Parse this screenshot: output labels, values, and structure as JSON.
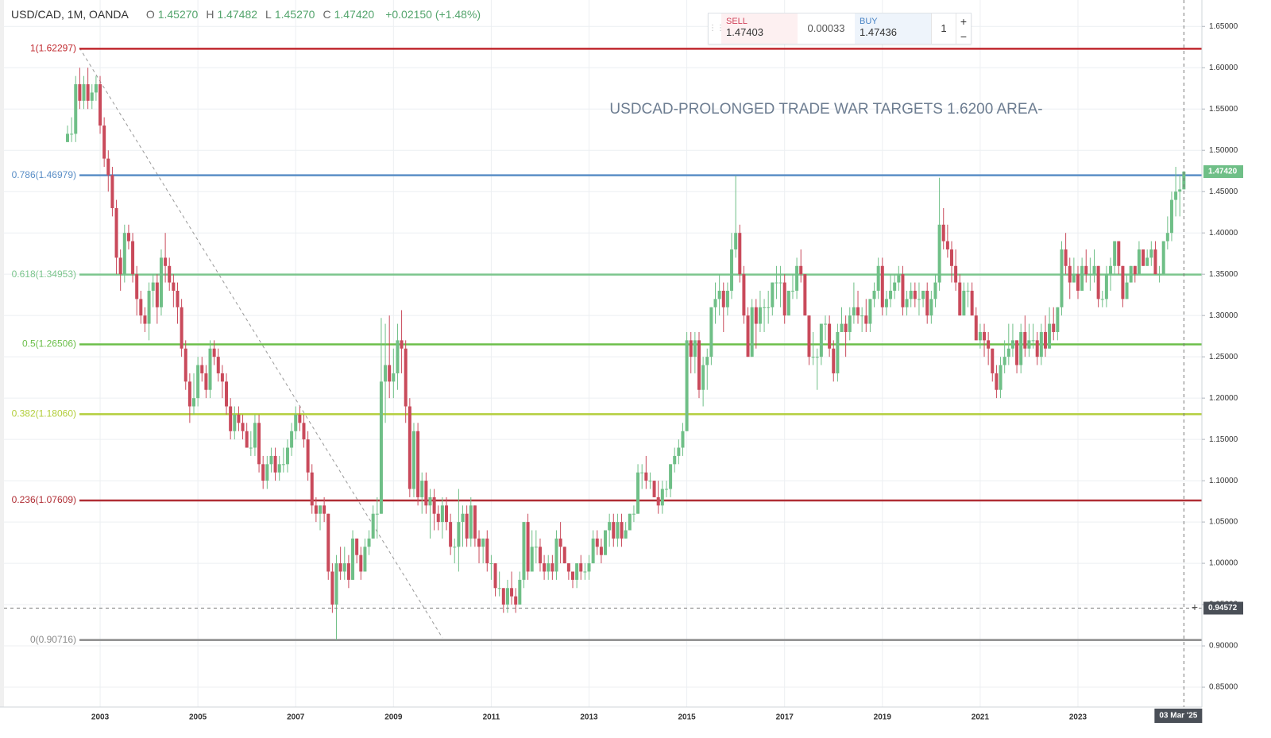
{
  "chart_data": {
    "type": "candlestick",
    "annotation": "USDCAD-PROLONGED TRADE WAR TARGETS 1.6200 AREA-",
    "header": {
      "symbol": "USD/CAD, 1M, OANDA",
      "fields": [
        {
          "key": "O",
          "value": "1.45270"
        },
        {
          "key": "H",
          "value": "1.47482"
        },
        {
          "key": "L",
          "value": "1.45270"
        },
        {
          "key": "C",
          "value": "1.47420"
        }
      ],
      "change": "+0.02150 (+1.48%)"
    },
    "up_color": "#6fbf87",
    "down_color": "#c94a5b",
    "ylim": [
      0.826,
      1.682
    ],
    "yticks": [
      {
        "value": 0.85,
        "label": "0.85000"
      },
      {
        "value": 0.9,
        "label": "0.90000"
      },
      {
        "value": 0.95,
        "label": "0.95000"
      },
      {
        "value": 1.0,
        "label": "1.00000"
      },
      {
        "value": 1.05,
        "label": "1.05000"
      },
      {
        "value": 1.1,
        "label": "1.10000"
      },
      {
        "value": 1.15,
        "label": "1.15000"
      },
      {
        "value": 1.2,
        "label": "1.20000"
      },
      {
        "value": 1.25,
        "label": "1.25000"
      },
      {
        "value": 1.3,
        "label": "1.30000"
      },
      {
        "value": 1.35,
        "label": "1.35000"
      },
      {
        "value": 1.4,
        "label": "1.40000"
      },
      {
        "value": 1.45,
        "label": "1.45000"
      },
      {
        "value": 1.5,
        "label": "1.50000"
      },
      {
        "value": 1.55,
        "label": "1.55000"
      },
      {
        "value": 1.6,
        "label": "1.60000"
      },
      {
        "value": 1.65,
        "label": "1.65000"
      }
    ],
    "grid": true,
    "fib_levels": [
      {
        "label": "1(1.62297)",
        "value": 1.62297,
        "color": "#c0272d"
      },
      {
        "label": "0.786(1.46979)",
        "value": 1.46979,
        "color": "#5a8ec6"
      },
      {
        "label": "0.618(1.34953)",
        "value": 1.34953,
        "color": "#7cc58d"
      },
      {
        "label": "0.5(1.26506)",
        "value": 1.26506,
        "color": "#6cbf4a"
      },
      {
        "label": "0.382(1.18060)",
        "value": 1.1806,
        "color": "#b3ce3c"
      },
      {
        "label": "0.236(1.07609)",
        "value": 1.07609,
        "color": "#b02e35"
      },
      {
        "label": "0(0.90716)",
        "value": 0.90716,
        "color": "#8a8a8a"
      }
    ],
    "crosshair_y": 0.94572,
    "crosshair_x_label": "03 Mar '25",
    "categories": [
      null,
      null,
      null,
      null,
      null,
      null,
      null,
      null,
      "2003",
      null,
      null,
      null,
      null,
      null,
      null,
      null,
      null,
      null,
      null,
      null,
      null,
      null,
      null,
      null,
      null,
      null,
      null,
      null,
      null,
      null,
      null,
      null,
      "2005",
      null,
      null,
      null,
      null,
      null,
      null,
      null,
      null,
      null,
      null,
      null,
      null,
      null,
      null,
      null,
      null,
      null,
      null,
      null,
      null,
      null,
      null,
      null,
      "2007",
      null,
      null,
      null,
      null,
      null,
      null,
      null,
      null,
      null,
      null,
      null,
      null,
      null,
      null,
      null,
      null,
      null,
      null,
      null,
      null,
      null,
      null,
      null,
      "2009",
      null,
      null,
      null,
      null,
      null,
      null,
      null,
      null,
      null,
      null,
      null,
      null,
      null,
      null,
      null,
      null,
      null,
      null,
      null,
      null,
      null,
      null,
      null,
      "2011",
      null,
      null,
      null,
      null,
      null,
      null,
      null,
      null,
      null,
      null,
      null,
      null,
      null,
      null,
      null,
      null,
      null,
      null,
      null,
      null,
      null,
      null,
      null,
      "2013",
      null,
      null,
      null,
      null,
      null,
      null,
      null,
      null,
      null,
      null,
      null,
      null,
      null,
      null,
      null,
      null,
      null,
      null,
      null,
      null,
      null,
      null,
      null,
      "2015",
      null,
      null,
      null,
      null,
      null,
      null,
      null,
      null,
      null,
      null,
      null,
      null,
      null,
      null,
      null,
      null,
      null,
      null,
      null,
      null,
      null,
      null,
      null,
      "2017",
      null,
      null,
      null,
      null,
      null,
      null,
      null,
      null,
      null,
      null,
      null,
      null,
      null,
      null,
      null,
      null,
      null,
      null,
      null,
      null,
      null,
      null,
      null,
      "2019",
      null,
      null,
      null,
      null,
      null,
      null,
      null,
      null,
      null,
      null,
      null,
      null,
      null,
      null,
      null,
      null,
      null,
      null,
      null,
      null,
      null,
      null,
      null,
      "2021",
      null,
      null,
      null,
      null,
      null,
      null,
      null,
      null,
      null,
      null,
      null,
      null,
      null,
      null,
      null,
      null,
      null,
      null,
      null,
      null,
      null,
      null,
      null,
      "2023",
      null,
      null,
      null,
      null,
      null,
      null,
      null,
      null,
      null,
      null,
      null,
      null,
      null,
      null,
      null,
      null,
      null,
      null,
      null,
      null,
      null,
      null,
      null,
      null,
      null,
      null
    ],
    "open": [
      1.51,
      1.52,
      1.52,
      1.58,
      1.56,
      1.58,
      1.56,
      1.57,
      1.58,
      1.53,
      1.49,
      1.47,
      1.43,
      1.37,
      1.35,
      1.4,
      1.39,
      1.35,
      1.32,
      1.3,
      1.29,
      1.33,
      1.34,
      1.31,
      1.37,
      1.36,
      1.34,
      1.33,
      1.31,
      1.26,
      1.22,
      1.19,
      1.2,
      1.24,
      1.23,
      1.21,
      1.26,
      1.25,
      1.23,
      1.22,
      1.19,
      1.16,
      1.18,
      1.17,
      1.16,
      1.14,
      1.14,
      1.17,
      1.12,
      1.1,
      1.12,
      1.13,
      1.11,
      1.12,
      1.12,
      1.14,
      1.16,
      1.18,
      1.17,
      1.15,
      1.11,
      1.07,
      1.06,
      1.07,
      1.06,
      0.99,
      0.95,
      1.0,
      0.99,
      1.0,
      0.98,
      1.03,
      1.01,
      0.99,
      1.02,
      1.03,
      1.06,
      1.06,
      1.22,
      1.24,
      1.22,
      1.23,
      1.27,
      1.26,
      1.19,
      1.09,
      1.16,
      1.08,
      1.1,
      1.07,
      1.08,
      1.06,
      1.05,
      1.07,
      1.05,
      1.02,
      1.02,
      1.05,
      1.06,
      1.03,
      1.07,
      1.03,
      1.02,
      1.03,
      1.0,
      1.0,
      0.97,
      0.97,
      0.95,
      0.97,
      0.96,
      0.95,
      0.98,
      1.05,
      0.99,
      1.02,
      1.02,
      1.0,
      0.99,
      1.0,
      0.99,
      1.03,
      1.02,
      1.0,
      0.99,
      0.98,
      1.0,
      0.99,
      0.99,
      1.0,
      1.03,
      1.02,
      1.01,
      1.04,
      1.05,
      1.03,
      1.05,
      1.03,
      1.04,
      1.06,
      1.06,
      1.11,
      1.11,
      1.1,
      1.1,
      1.08,
      1.07,
      1.09,
      1.09,
      1.12,
      1.13,
      1.14,
      1.16,
      1.27,
      1.25,
      1.27,
      1.21,
      1.24,
      1.25,
      1.31,
      1.32,
      1.33,
      1.31,
      1.33,
      1.38,
      1.4,
      1.35,
      1.3,
      1.25,
      1.31,
      1.29,
      1.31,
      1.31,
      1.31,
      1.34,
      1.34,
      1.34,
      1.3,
      1.33,
      1.33,
      1.36,
      1.35,
      1.3,
      1.25,
      1.25,
      1.25,
      1.29,
      1.29,
      1.26,
      1.23,
      1.28,
      1.29,
      1.28,
      1.3,
      1.31,
      1.3,
      1.3,
      1.29,
      1.32,
      1.33,
      1.36,
      1.31,
      1.32,
      1.33,
      1.34,
      1.35,
      1.31,
      1.32,
      1.33,
      1.32,
      1.32,
      1.33,
      1.3,
      1.32,
      1.34,
      1.41,
      1.39,
      1.38,
      1.36,
      1.34,
      1.3,
      1.33,
      1.33,
      1.3,
      1.27,
      1.28,
      1.27,
      1.26,
      1.23,
      1.21,
      1.24,
      1.25,
      1.26,
      1.27,
      1.24,
      1.28,
      1.26,
      1.27,
      1.27,
      1.25,
      1.28,
      1.26,
      1.29,
      1.28,
      1.31,
      1.38,
      1.36,
      1.34,
      1.35,
      1.33,
      1.36,
      1.35,
      1.35,
      1.36,
      1.32,
      1.32,
      1.35,
      1.36,
      1.39,
      1.36,
      1.32,
      1.34,
      1.36,
      1.35,
      1.38,
      1.36,
      1.37,
      1.38,
      1.35,
      1.35,
      1.39,
      1.4,
      1.44,
      1.45,
      1.4527
    ],
    "high": [
      1.53,
      1.54,
      1.59,
      1.6,
      1.59,
      1.6,
      1.58,
      1.59,
      1.59,
      1.54,
      1.5,
      1.48,
      1.44,
      1.38,
      1.41,
      1.41,
      1.4,
      1.36,
      1.33,
      1.31,
      1.34,
      1.35,
      1.35,
      1.38,
      1.4,
      1.37,
      1.35,
      1.34,
      1.32,
      1.27,
      1.23,
      1.23,
      1.25,
      1.25,
      1.24,
      1.27,
      1.27,
      1.26,
      1.24,
      1.23,
      1.2,
      1.19,
      1.19,
      1.18,
      1.17,
      1.16,
      1.18,
      1.18,
      1.13,
      1.13,
      1.14,
      1.14,
      1.13,
      1.14,
      1.15,
      1.17,
      1.19,
      1.19,
      1.18,
      1.16,
      1.12,
      1.08,
      1.07,
      1.08,
      1.06,
      1.0,
      1.01,
      1.02,
      1.02,
      1.01,
      1.04,
      1.03,
      1.02,
      1.03,
      1.04,
      1.07,
      1.08,
      1.297,
      1.29,
      1.3,
      1.26,
      1.29,
      1.3065,
      1.27,
      1.2,
      1.17,
      1.17,
      1.11,
      1.11,
      1.09,
      1.09,
      1.07,
      1.08,
      1.08,
      1.06,
      1.03,
      1.09,
      1.07,
      1.07,
      1.08,
      1.07,
      1.04,
      1.03,
      1.04,
      1.01,
      1.0,
      0.99,
      0.97,
      0.98,
      0.99,
      0.97,
      0.99,
      1.05,
      1.06,
      1.04,
      1.04,
      1.03,
      1.01,
      1.01,
      1.01,
      1.04,
      1.05,
      1.02,
      1.0,
      0.99,
      1.0,
      1.01,
      1.0,
      1.01,
      1.04,
      1.04,
      1.03,
      1.04,
      1.06,
      1.06,
      1.06,
      1.06,
      1.05,
      1.06,
      1.07,
      1.12,
      1.12,
      1.13,
      1.11,
      1.1,
      1.1,
      1.1,
      1.1,
      1.12,
      1.14,
      1.15,
      1.17,
      1.28,
      1.28,
      1.28,
      1.28,
      1.25,
      1.26,
      1.31,
      1.34,
      1.35,
      1.34,
      1.34,
      1.4,
      1.469,
      1.41,
      1.36,
      1.31,
      1.32,
      1.32,
      1.33,
      1.32,
      1.33,
      1.34,
      1.36,
      1.36,
      1.35,
      1.33,
      1.35,
      1.37,
      1.38,
      1.35,
      1.3,
      1.28,
      1.26,
      1.29,
      1.3,
      1.3,
      1.27,
      1.29,
      1.31,
      1.3,
      1.31,
      1.34,
      1.33,
      1.31,
      1.32,
      1.32,
      1.34,
      1.37,
      1.37,
      1.33,
      1.35,
      1.35,
      1.36,
      1.36,
      1.33,
      1.34,
      1.34,
      1.34,
      1.33,
      1.34,
      1.33,
      1.35,
      1.4668,
      1.43,
      1.41,
      1.39,
      1.38,
      1.35,
      1.34,
      1.34,
      1.34,
      1.31,
      1.29,
      1.29,
      1.28,
      1.26,
      1.24,
      1.25,
      1.27,
      1.29,
      1.29,
      1.27,
      1.29,
      1.3,
      1.29,
      1.29,
      1.28,
      1.29,
      1.3,
      1.31,
      1.31,
      1.31,
      1.39,
      1.4,
      1.37,
      1.37,
      1.36,
      1.37,
      1.38,
      1.37,
      1.38,
      1.36,
      1.33,
      1.36,
      1.37,
      1.39,
      1.39,
      1.36,
      1.35,
      1.36,
      1.36,
      1.39,
      1.38,
      1.38,
      1.39,
      1.39,
      1.36,
      1.39,
      1.42,
      1.45,
      1.48,
      1.47,
      1.47482
    ],
    "low": [
      1.51,
      1.51,
      1.51,
      1.55,
      1.55,
      1.55,
      1.55,
      1.56,
      1.52,
      1.48,
      1.45,
      1.42,
      1.35,
      1.33,
      1.34,
      1.38,
      1.34,
      1.3,
      1.29,
      1.28,
      1.27,
      1.31,
      1.29,
      1.3,
      1.34,
      1.33,
      1.31,
      1.29,
      1.25,
      1.21,
      1.17,
      1.18,
      1.19,
      1.22,
      1.2,
      1.2,
      1.24,
      1.22,
      1.2,
      1.18,
      1.15,
      1.15,
      1.16,
      1.15,
      1.14,
      1.13,
      1.13,
      1.11,
      1.09,
      1.09,
      1.11,
      1.1,
      1.1,
      1.11,
      1.11,
      1.13,
      1.15,
      1.16,
      1.14,
      1.1,
      1.06,
      1.05,
      1.04,
      1.05,
      0.98,
      0.94,
      0.9072,
      0.98,
      0.98,
      0.97,
      0.98,
      1.0,
      0.98,
      0.99,
      1.01,
      1.03,
      1.03,
      1.06,
      1.17,
      1.2,
      1.2,
      1.21,
      1.23,
      1.17,
      1.08,
      1.08,
      1.07,
      1.06,
      1.06,
      1.03,
      1.04,
      1.04,
      1.03,
      1.04,
      1.01,
      1.0,
      0.99,
      1.02,
      1.02,
      1.02,
      1.02,
      1.0,
      1.0,
      0.99,
      0.98,
      0.96,
      0.96,
      0.94,
      0.94,
      0.95,
      0.94,
      0.95,
      0.97,
      0.98,
      0.99,
      1.0,
      0.99,
      0.98,
      0.98,
      0.98,
      0.98,
      1.0,
      1.0,
      0.98,
      0.97,
      0.97,
      0.98,
      0.98,
      0.98,
      1.0,
      1.01,
      1.0,
      1.01,
      1.02,
      1.02,
      1.02,
      1.02,
      1.03,
      1.04,
      1.05,
      1.06,
      1.09,
      1.09,
      1.09,
      1.08,
      1.06,
      1.06,
      1.08,
      1.08,
      1.11,
      1.12,
      1.13,
      1.16,
      1.23,
      1.23,
      1.2,
      1.19,
      1.21,
      1.24,
      1.29,
      1.3,
      1.28,
      1.3,
      1.32,
      1.37,
      1.34,
      1.29,
      1.25,
      1.25,
      1.26,
      1.28,
      1.28,
      1.29,
      1.3,
      1.32,
      1.31,
      1.29,
      1.3,
      1.32,
      1.32,
      1.34,
      1.3,
      1.24,
      1.24,
      1.21,
      1.24,
      1.27,
      1.25,
      1.22,
      1.22,
      1.28,
      1.25,
      1.27,
      1.29,
      1.29,
      1.28,
      1.28,
      1.28,
      1.31,
      1.32,
      1.3,
      1.3,
      1.31,
      1.32,
      1.33,
      1.3,
      1.3,
      1.31,
      1.31,
      1.3,
      1.31,
      1.29,
      1.29,
      1.31,
      1.33,
      1.38,
      1.37,
      1.34,
      1.33,
      1.3,
      1.3,
      1.31,
      1.3,
      1.27,
      1.26,
      1.25,
      1.24,
      1.22,
      1.2,
      1.2,
      1.23,
      1.24,
      1.25,
      1.23,
      1.23,
      1.25,
      1.25,
      1.26,
      1.24,
      1.24,
      1.25,
      1.26,
      1.27,
      1.27,
      1.3,
      1.35,
      1.32,
      1.34,
      1.32,
      1.33,
      1.34,
      1.33,
      1.34,
      1.31,
      1.31,
      1.31,
      1.33,
      1.35,
      1.35,
      1.31,
      1.32,
      1.34,
      1.34,
      1.35,
      1.36,
      1.36,
      1.36,
      1.35,
      1.34,
      1.35,
      1.38,
      1.39,
      1.42,
      1.42,
      1.4527
    ],
    "close": [
      1.52,
      1.52,
      1.58,
      1.56,
      1.58,
      1.56,
      1.57,
      1.58,
      1.53,
      1.49,
      1.47,
      1.43,
      1.37,
      1.35,
      1.4,
      1.39,
      1.35,
      1.32,
      1.3,
      1.29,
      1.33,
      1.34,
      1.31,
      1.37,
      1.36,
      1.34,
      1.33,
      1.31,
      1.26,
      1.22,
      1.19,
      1.2,
      1.24,
      1.23,
      1.21,
      1.26,
      1.25,
      1.23,
      1.22,
      1.19,
      1.16,
      1.18,
      1.17,
      1.16,
      1.14,
      1.14,
      1.17,
      1.12,
      1.1,
      1.12,
      1.13,
      1.11,
      1.12,
      1.12,
      1.14,
      1.16,
      1.18,
      1.17,
      1.15,
      1.11,
      1.07,
      1.06,
      1.07,
      1.06,
      0.99,
      0.95,
      1.0,
      0.99,
      1.0,
      0.98,
      1.03,
      1.01,
      0.99,
      1.02,
      1.03,
      1.06,
      1.06,
      1.22,
      1.24,
      1.22,
      1.23,
      1.27,
      1.26,
      1.19,
      1.09,
      1.16,
      1.08,
      1.1,
      1.07,
      1.08,
      1.06,
      1.05,
      1.07,
      1.05,
      1.02,
      1.02,
      1.05,
      1.06,
      1.03,
      1.07,
      1.03,
      1.02,
      1.03,
      1.0,
      1.0,
      0.97,
      0.97,
      0.95,
      0.97,
      0.96,
      0.95,
      0.98,
      1.05,
      0.99,
      1.02,
      1.02,
      1.0,
      0.99,
      1.0,
      0.99,
      1.03,
      1.02,
      1.0,
      0.99,
      0.98,
      1.0,
      0.99,
      0.99,
      1.0,
      1.03,
      1.02,
      1.01,
      1.04,
      1.05,
      1.03,
      1.05,
      1.03,
      1.04,
      1.06,
      1.06,
      1.11,
      1.11,
      1.1,
      1.1,
      1.08,
      1.07,
      1.09,
      1.09,
      1.12,
      1.13,
      1.14,
      1.16,
      1.27,
      1.25,
      1.27,
      1.21,
      1.24,
      1.25,
      1.31,
      1.32,
      1.33,
      1.31,
      1.33,
      1.38,
      1.4,
      1.35,
      1.3,
      1.25,
      1.31,
      1.29,
      1.31,
      1.31,
      1.31,
      1.34,
      1.34,
      1.34,
      1.3,
      1.33,
      1.33,
      1.36,
      1.35,
      1.3,
      1.25,
      1.25,
      1.25,
      1.29,
      1.29,
      1.26,
      1.23,
      1.28,
      1.29,
      1.28,
      1.3,
      1.31,
      1.3,
      1.3,
      1.29,
      1.32,
      1.33,
      1.36,
      1.31,
      1.32,
      1.33,
      1.34,
      1.35,
      1.31,
      1.32,
      1.33,
      1.32,
      1.32,
      1.33,
      1.3,
      1.32,
      1.34,
      1.41,
      1.39,
      1.38,
      1.36,
      1.34,
      1.3,
      1.33,
      1.33,
      1.3,
      1.27,
      1.28,
      1.27,
      1.26,
      1.23,
      1.21,
      1.24,
      1.25,
      1.26,
      1.27,
      1.24,
      1.28,
      1.26,
      1.27,
      1.27,
      1.25,
      1.28,
      1.26,
      1.29,
      1.28,
      1.31,
      1.38,
      1.36,
      1.34,
      1.35,
      1.33,
      1.36,
      1.35,
      1.35,
      1.36,
      1.32,
      1.32,
      1.35,
      1.36,
      1.39,
      1.36,
      1.32,
      1.34,
      1.36,
      1.35,
      1.38,
      1.36,
      1.37,
      1.38,
      1.35,
      1.35,
      1.39,
      1.4,
      1.44,
      1.45,
      1.4527,
      1.4742
    ]
  },
  "trade_panel": {
    "sell_label": "SELL",
    "sell_price": "1.47403",
    "spread": "0.00033",
    "buy_label": "BUY",
    "buy_price": "1.47436",
    "quantity": "1",
    "plus": "+",
    "minus": "−"
  }
}
